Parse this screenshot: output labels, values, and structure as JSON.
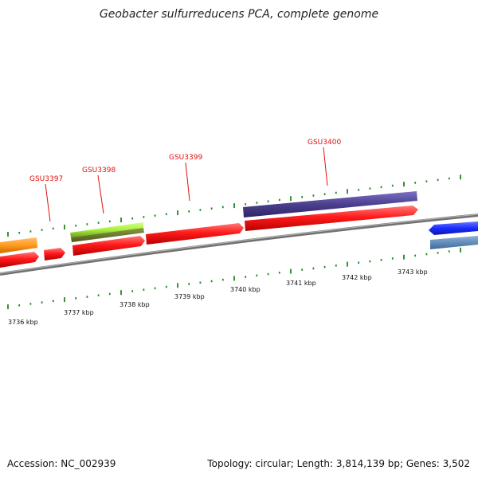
{
  "title": "Geobacter sulfurreducens PCA, complete genome",
  "footer": {
    "accession": "Accession: NC_002939",
    "summary": "Topology: circular; Length: 3,814,139 bp; Genes: 3,502"
  },
  "colors": {
    "cds": "#ff1a1a",
    "tick": "#1e8a1e",
    "backbone": "#888888",
    "label": "#e01010",
    "purple": "#4b3f8f",
    "orange": "#ff9a1a",
    "lime": "#a6f23a",
    "blue": "#1a2cff",
    "steel": "#5a86b8"
  },
  "kbp_labels": [
    "3736 kbp",
    "3737 kbp",
    "3738 kbp",
    "3739 kbp",
    "3740 kbp",
    "3741 kbp",
    "3742 kbp",
    "3743 kbp"
  ],
  "gene_labels": [
    "GSU3397",
    "GSU3398",
    "GSU3399",
    "GSU3400"
  ]
}
